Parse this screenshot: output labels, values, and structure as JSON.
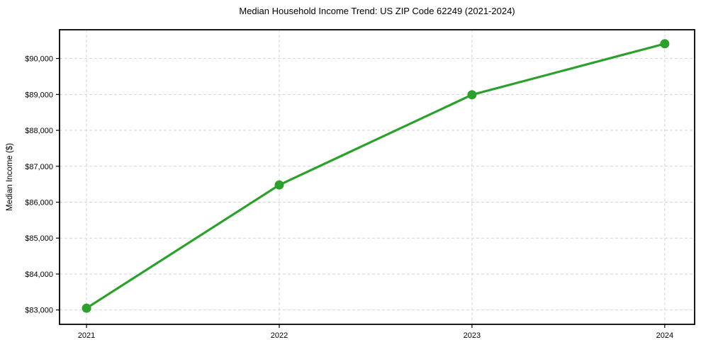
{
  "chart_data": {
    "type": "line",
    "title": "Median Household Income Trend: US ZIP Code 62249 (2021-2024)",
    "xlabel": "",
    "ylabel": "Median Income ($)",
    "x": [
      2021,
      2022,
      2023,
      2024
    ],
    "x_labels": [
      "2021",
      "2022",
      "2023",
      "2024"
    ],
    "series": [
      {
        "name": "Median Household Income",
        "values": [
          83050,
          86480,
          88990,
          90410
        ]
      }
    ],
    "y_ticks": [
      {
        "value": 83000,
        "label": "$83,000"
      },
      {
        "value": 84000,
        "label": "$84,000"
      },
      {
        "value": 85000,
        "label": "$85,000"
      },
      {
        "value": 86000,
        "label": "$86,000"
      },
      {
        "value": 87000,
        "label": "$87,000"
      },
      {
        "value": 88000,
        "label": "$88,000"
      },
      {
        "value": 89000,
        "label": "$89,000"
      },
      {
        "value": 90000,
        "label": "$90,000"
      }
    ],
    "ylim": [
      82600,
      90800
    ],
    "xlim": [
      2020.86,
      2024.155
    ],
    "grid": true,
    "legend": "none",
    "line_color": "#2ca02c",
    "marker_color": "#2ca02c",
    "grid_color": "#d4d4d4",
    "spine_color": "#000000",
    "background_color": "#ffffff"
  }
}
